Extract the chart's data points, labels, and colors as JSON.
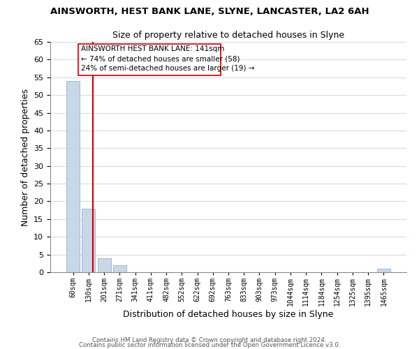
{
  "title1": "AINSWORTH, HEST BANK LANE, SLYNE, LANCASTER, LA2 6AH",
  "title2": "Size of property relative to detached houses in Slyne",
  "xlabel": "Distribution of detached houses by size in Slyne",
  "ylabel": "Number of detached properties",
  "bin_labels": [
    "60sqm",
    "130sqm",
    "201sqm",
    "271sqm",
    "341sqm",
    "411sqm",
    "482sqm",
    "552sqm",
    "622sqm",
    "692sqm",
    "763sqm",
    "833sqm",
    "903sqm",
    "973sqm",
    "1044sqm",
    "1114sqm",
    "1184sqm",
    "1254sqm",
    "1325sqm",
    "1395sqm",
    "1465sqm"
  ],
  "bar_values": [
    54,
    18,
    4,
    2,
    0,
    0,
    0,
    0,
    0,
    0,
    0,
    0,
    0,
    0,
    0,
    0,
    0,
    0,
    0,
    0,
    1
  ],
  "bar_color": "#c8d8e8",
  "bar_edge_color": "#a0b8cc",
  "vline_x": 1.26,
  "vline_color": "#cc0000",
  "annotation_text_line1": "AINSWORTH HEST BANK LANE: 141sqm",
  "annotation_text_line2": "← 74% of detached houses are smaller (58)",
  "annotation_text_line3": "24% of semi-detached houses are larger (19) →",
  "ylim": [
    0,
    65
  ],
  "yticks": [
    0,
    5,
    10,
    15,
    20,
    25,
    30,
    35,
    40,
    45,
    50,
    55,
    60,
    65
  ],
  "footer1": "Contains HM Land Registry data © Crown copyright and database right 2024.",
  "footer2": "Contains public sector information licensed under the Open Government Licence v3.0.",
  "bg_color": "#ffffff",
  "grid_color": "#d0dce8"
}
